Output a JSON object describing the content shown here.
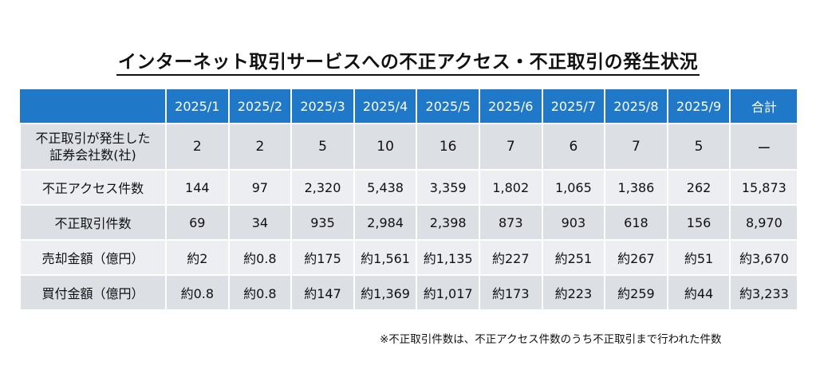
{
  "title": "インターネット取引サービスへの不正アクセス・不正取引の発生状況",
  "headers": [
    "",
    "2025/1",
    "2025/2",
    "2025/3",
    "2025/4",
    "2025/5",
    "2025/6",
    "2025/7",
    "2025/8",
    "2025/9",
    "合計"
  ],
  "rows": [
    {
      "label_line1": "不正取引が発生した",
      "label_line2": "証券会社数(社)",
      "values": [
        "2",
        "2",
        "5",
        "10",
        "16",
        "7",
        "6",
        "7",
        "5",
        "ー"
      ]
    },
    {
      "label": "不正アクセス件数",
      "values": [
        "144",
        "97",
        "2,320",
        "5,438",
        "3,359",
        "1,802",
        "1,065",
        "1,386",
        "262",
        "15,873"
      ]
    },
    {
      "label": "不正取引件数",
      "values": [
        "69",
        "34",
        "935",
        "2,984",
        "2,398",
        "873",
        "903",
        "618",
        "156",
        "8,970"
      ]
    },
    {
      "label": "売却金額（億円）",
      "values": [
        "約2",
        "約0.8",
        "約175",
        "約1,561",
        "約1,135",
        "約227",
        "約251",
        "約267",
        "約51",
        "約3,670"
      ]
    },
    {
      "label": "買付金額（億円）",
      "values": [
        "約0.8",
        "約0.8",
        "約147",
        "約1,369",
        "約1,017",
        "約173",
        "約223",
        "約259",
        "約44",
        "約3,233"
      ]
    }
  ],
  "note": "※不正取引件数は、不正アクセス件数のうち不正取引まで行われた件数"
}
